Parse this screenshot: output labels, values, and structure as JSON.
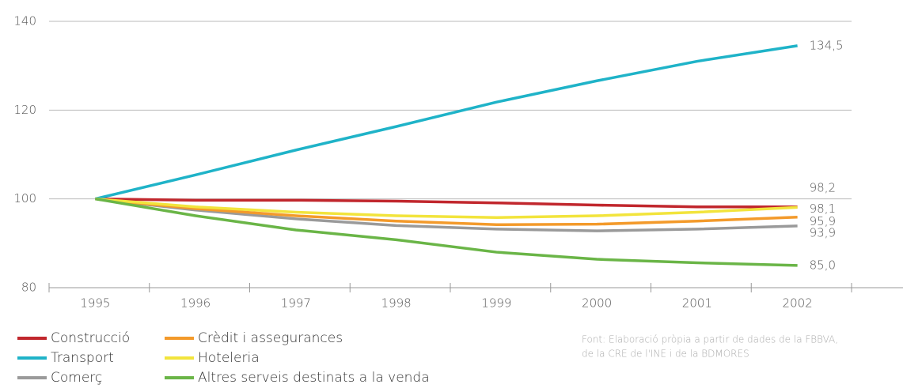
{
  "chart_data": {
    "type": "line",
    "categories": [
      "1995",
      "1996",
      "1997",
      "1998",
      "1999",
      "2000",
      "2001",
      "2002"
    ],
    "series": [
      {
        "name": "Construcció",
        "color": "#c1272d",
        "values": [
          100,
          99.7,
          99.7,
          99.5,
          99.1,
          98.6,
          98.2,
          98.2
        ],
        "value_labels": [
          null,
          null,
          null,
          null,
          null,
          null,
          null,
          "98,2"
        ]
      },
      {
        "name": "Transport",
        "color": "#1fb3c8",
        "values": [
          100,
          105.4,
          111,
          116.3,
          121.8,
          126.6,
          131,
          134.5
        ],
        "value_labels": [
          null,
          null,
          null,
          null,
          null,
          null,
          null,
          "134,5"
        ]
      },
      {
        "name": "Comerç",
        "color": "#9a9a9a",
        "values": [
          100,
          97.5,
          95.5,
          94,
          93.2,
          92.8,
          93.2,
          93.9
        ],
        "value_labels": [
          null,
          null,
          null,
          null,
          null,
          null,
          null,
          "93,9"
        ]
      },
      {
        "name": "Crèdit i assegurances",
        "color": "#f39a2b",
        "values": [
          100,
          97.8,
          96.2,
          95,
          94.2,
          94.3,
          95,
          95.9
        ],
        "value_labels": [
          null,
          null,
          null,
          null,
          null,
          null,
          null,
          "95,9"
        ]
      },
      {
        "name": "Hoteleria",
        "color": "#f2e43c",
        "values": [
          100,
          98.2,
          97,
          96.2,
          95.8,
          96.2,
          97,
          98.1
        ],
        "value_labels": [
          null,
          null,
          null,
          null,
          null,
          null,
          null,
          "98,1"
        ]
      },
      {
        "name": "Altres serveis destinats a la venda",
        "color": "#6ab547",
        "values": [
          100,
          96.2,
          93,
          90.8,
          88,
          86.4,
          85.6,
          85.0
        ],
        "value_labels": [
          null,
          null,
          null,
          null,
          null,
          null,
          null,
          "85,0"
        ]
      }
    ],
    "ylim": [
      80,
      140
    ],
    "yticks": [
      80,
      100,
      120,
      140
    ],
    "grid": true,
    "source": [
      "Font: Elaboració pròpia a partir de dades de la FBBVA,",
      "de la CRE de l'INE i de la BDMORES"
    ]
  }
}
